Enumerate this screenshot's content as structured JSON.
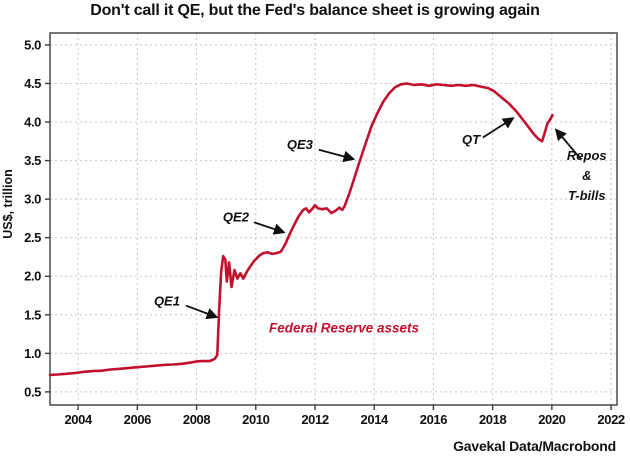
{
  "chart_data": {
    "type": "line",
    "title": "Don't call it QE, but the Fed's balance sheet is growing again",
    "ylabel": "US$, trillion",
    "xlabel": "",
    "source": "Gavekal Data/Macrobond",
    "series_label": {
      "label": "Federal Reserve assets",
      "x": 2012.98,
      "y": 1.27
    },
    "line_color": "#c2112e",
    "grid_color": "#c6c6c6",
    "frame_color": "#3d3d3d",
    "text_color": "#111111",
    "xlim": [
      2003.05,
      2022.2
    ],
    "ylim": [
      0.33,
      5.155
    ],
    "x_ticks": [
      2004,
      2006,
      2008,
      2010,
      2012,
      2014,
      2016,
      2018,
      2020,
      2022
    ],
    "y_ticks": [
      0.5,
      1.0,
      1.5,
      2.0,
      2.5,
      3.0,
      3.5,
      4.0,
      4.5,
      5.0
    ],
    "grid": true,
    "legend": "none",
    "series": [
      {
        "name": "Federal Reserve assets",
        "points": [
          [
            2003.05,
            0.72
          ],
          [
            2003.3,
            0.725
          ],
          [
            2003.6,
            0.735
          ],
          [
            2003.9,
            0.745
          ],
          [
            2004.2,
            0.76
          ],
          [
            2004.5,
            0.77
          ],
          [
            2004.8,
            0.775
          ],
          [
            2005.1,
            0.79
          ],
          [
            2005.4,
            0.8
          ],
          [
            2005.7,
            0.81
          ],
          [
            2006.0,
            0.82
          ],
          [
            2006.3,
            0.83
          ],
          [
            2006.6,
            0.84
          ],
          [
            2006.9,
            0.85
          ],
          [
            2007.2,
            0.855
          ],
          [
            2007.5,
            0.865
          ],
          [
            2007.8,
            0.88
          ],
          [
            2008.0,
            0.895
          ],
          [
            2008.2,
            0.9
          ],
          [
            2008.45,
            0.9
          ],
          [
            2008.62,
            0.93
          ],
          [
            2008.7,
            0.98
          ],
          [
            2008.76,
            1.55
          ],
          [
            2008.83,
            2.05
          ],
          [
            2008.9,
            2.26
          ],
          [
            2008.97,
            2.22
          ],
          [
            2009.02,
            1.93
          ],
          [
            2009.1,
            2.18
          ],
          [
            2009.18,
            1.86
          ],
          [
            2009.28,
            2.08
          ],
          [
            2009.38,
            1.97
          ],
          [
            2009.48,
            2.04
          ],
          [
            2009.58,
            1.97
          ],
          [
            2009.7,
            2.06
          ],
          [
            2009.82,
            2.13
          ],
          [
            2009.95,
            2.2
          ],
          [
            2010.1,
            2.26
          ],
          [
            2010.25,
            2.3
          ],
          [
            2010.4,
            2.31
          ],
          [
            2010.55,
            2.29
          ],
          [
            2010.7,
            2.3
          ],
          [
            2010.85,
            2.32
          ],
          [
            2011.0,
            2.42
          ],
          [
            2011.15,
            2.55
          ],
          [
            2011.3,
            2.67
          ],
          [
            2011.45,
            2.78
          ],
          [
            2011.6,
            2.86
          ],
          [
            2011.7,
            2.88
          ],
          [
            2011.8,
            2.83
          ],
          [
            2011.9,
            2.87
          ],
          [
            2012.0,
            2.92
          ],
          [
            2012.1,
            2.88
          ],
          [
            2012.25,
            2.87
          ],
          [
            2012.4,
            2.88
          ],
          [
            2012.55,
            2.82
          ],
          [
            2012.7,
            2.85
          ],
          [
            2012.82,
            2.89
          ],
          [
            2012.92,
            2.86
          ],
          [
            2013.0,
            2.91
          ],
          [
            2013.15,
            3.06
          ],
          [
            2013.3,
            3.24
          ],
          [
            2013.5,
            3.48
          ],
          [
            2013.7,
            3.71
          ],
          [
            2013.9,
            3.94
          ],
          [
            2014.1,
            4.11
          ],
          [
            2014.3,
            4.26
          ],
          [
            2014.5,
            4.37
          ],
          [
            2014.7,
            4.45
          ],
          [
            2014.9,
            4.49
          ],
          [
            2015.1,
            4.5
          ],
          [
            2015.35,
            4.48
          ],
          [
            2015.6,
            4.49
          ],
          [
            2015.85,
            4.47
          ],
          [
            2016.1,
            4.49
          ],
          [
            2016.35,
            4.48
          ],
          [
            2016.6,
            4.47
          ],
          [
            2016.85,
            4.48
          ],
          [
            2017.1,
            4.47
          ],
          [
            2017.35,
            4.48
          ],
          [
            2017.6,
            4.46
          ],
          [
            2017.85,
            4.44
          ],
          [
            2018.05,
            4.4
          ],
          [
            2018.3,
            4.32
          ],
          [
            2018.55,
            4.24
          ],
          [
            2018.8,
            4.14
          ],
          [
            2019.0,
            4.04
          ],
          [
            2019.2,
            3.94
          ],
          [
            2019.4,
            3.84
          ],
          [
            2019.55,
            3.78
          ],
          [
            2019.67,
            3.75
          ],
          [
            2019.75,
            3.85
          ],
          [
            2019.85,
            3.98
          ],
          [
            2019.95,
            4.04
          ],
          [
            2020.02,
            4.09
          ]
        ]
      }
    ],
    "annotations": [
      {
        "id": "qe1",
        "label": "QE1",
        "x": 2007.0,
        "y": 1.67,
        "arrow": {
          "x1": 2007.64,
          "y1": 1.62,
          "x2": 2008.68,
          "y2": 1.47
        }
      },
      {
        "id": "qe2",
        "label": "QE2",
        "x": 2009.33,
        "y": 2.76,
        "arrow": {
          "x1": 2009.94,
          "y1": 2.7,
          "x2": 2010.95,
          "y2": 2.57
        }
      },
      {
        "id": "qe3",
        "label": "QE3",
        "x": 2011.49,
        "y": 3.7,
        "arrow": {
          "x1": 2012.13,
          "y1": 3.64,
          "x2": 2013.3,
          "y2": 3.52
        }
      },
      {
        "id": "qt",
        "label": "QT",
        "x": 2017.27,
        "y": 3.77,
        "arrow": {
          "x1": 2017.67,
          "y1": 3.8,
          "x2": 2018.69,
          "y2": 4.05
        }
      },
      {
        "id": "repos-tbills",
        "label": "Repos\n&\nT-bills",
        "x": 2021.18,
        "y": 3.38,
        "arrow": {
          "x1": 2020.98,
          "y1": 3.52,
          "x2": 2020.14,
          "y2": 3.9
        }
      }
    ]
  }
}
